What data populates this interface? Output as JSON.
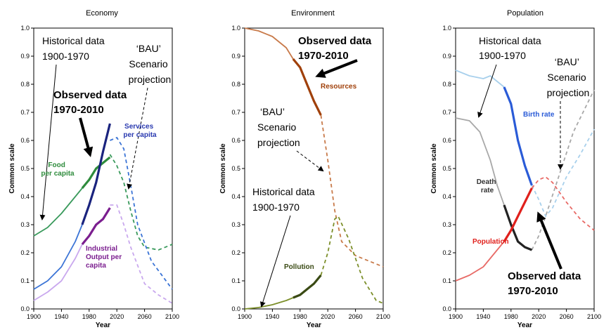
{
  "chart_data": [
    {
      "type": "line",
      "title": "Economy",
      "xlabel": "Year",
      "ylabel": "Common scale",
      "xlim": [
        1900,
        2100
      ],
      "ylim": [
        0,
        1.0
      ],
      "xticks": [
        1900,
        1940,
        1980,
        2020,
        2060,
        2100
      ],
      "yticks": [
        0,
        0.1,
        0.2,
        0.3,
        0.4,
        0.5,
        0.6,
        0.7,
        0.8,
        0.9,
        1.0
      ],
      "series": [
        {
          "name": "Food per capita",
          "color": "#2e8b3c",
          "historical_color": "#3a9a5c",
          "historical": [
            [
              1900,
              0.26
            ],
            [
              1920,
              0.29
            ],
            [
              1940,
              0.34
            ],
            [
              1960,
              0.4
            ],
            [
              1970,
              0.43
            ]
          ],
          "observed": [
            [
              1970,
              0.43
            ],
            [
              1980,
              0.46
            ],
            [
              1990,
              0.5
            ],
            [
              2000,
              0.52
            ],
            [
              2010,
              0.54
            ]
          ],
          "projection": [
            [
              2010,
              0.55
            ],
            [
              2020,
              0.51
            ],
            [
              2030,
              0.45
            ],
            [
              2040,
              0.35
            ],
            [
              2050,
              0.26
            ],
            [
              2060,
              0.22
            ],
            [
              2080,
              0.21
            ],
            [
              2100,
              0.23
            ]
          ]
        },
        {
          "name": "Services per capita",
          "color": "#1a237e",
          "historical_color": "#3b74d6",
          "historical": [
            [
              1900,
              0.07
            ],
            [
              1920,
              0.1
            ],
            [
              1940,
              0.15
            ],
            [
              1960,
              0.24
            ],
            [
              1970,
              0.3
            ]
          ],
          "observed": [
            [
              1970,
              0.3
            ],
            [
              1980,
              0.37
            ],
            [
              1990,
              0.45
            ],
            [
              2000,
              0.56
            ],
            [
              2010,
              0.66
            ]
          ],
          "projection": [
            [
              2010,
              0.6
            ],
            [
              2020,
              0.61
            ],
            [
              2030,
              0.57
            ],
            [
              2040,
              0.44
            ],
            [
              2050,
              0.3
            ],
            [
              2070,
              0.17
            ],
            [
              2100,
              0.07
            ]
          ]
        },
        {
          "name": "Industrial Output per capita",
          "color": "#7b1e8f",
          "historical_color": "#c9a8ee",
          "historical": [
            [
              1900,
              0.03
            ],
            [
              1920,
              0.06
            ],
            [
              1940,
              0.1
            ],
            [
              1960,
              0.18
            ],
            [
              1970,
              0.23
            ]
          ],
          "observed": [
            [
              1970,
              0.23
            ],
            [
              1980,
              0.26
            ],
            [
              1990,
              0.3
            ],
            [
              2000,
              0.32
            ],
            [
              2010,
              0.36
            ]
          ],
          "projection": [
            [
              2010,
              0.37
            ],
            [
              2020,
              0.37
            ],
            [
              2030,
              0.3
            ],
            [
              2040,
              0.22
            ],
            [
              2060,
              0.09
            ],
            [
              2080,
              0.05
            ],
            [
              2100,
              0.02
            ]
          ]
        }
      ],
      "labels": [
        {
          "id": "historical",
          "lines": [
            "Historical data",
            "1900-1970"
          ]
        },
        {
          "id": "observed",
          "lines": [
            "Observed data",
            "1970-2010"
          ]
        },
        {
          "id": "bau",
          "lines": [
            "‘BAU’",
            "Scenario",
            "projection"
          ]
        },
        {
          "id": "food",
          "lines": [
            "Food",
            "per capita"
          ]
        },
        {
          "id": "services",
          "lines": [
            "Services",
            "per capita"
          ]
        },
        {
          "id": "industrial",
          "lines": [
            "Industrial",
            "Output per",
            "capita"
          ]
        }
      ]
    },
    {
      "type": "line",
      "title": "Environment",
      "xlabel": "Year",
      "ylabel": "Common scale",
      "xlim": [
        1900,
        2100
      ],
      "ylim": [
        0,
        1.0
      ],
      "xticks": [
        1900,
        1940,
        1980,
        2020,
        2060,
        2100
      ],
      "yticks": [
        0,
        0.1,
        0.2,
        0.3,
        0.4,
        0.5,
        0.6,
        0.7,
        0.8,
        0.9,
        1.0
      ],
      "series": [
        {
          "name": "Resources",
          "color": "#a0400a",
          "historical_color": "#c87a4a",
          "historical": [
            [
              1900,
              1.0
            ],
            [
              1920,
              0.99
            ],
            [
              1940,
              0.97
            ],
            [
              1960,
              0.93
            ],
            [
              1970,
              0.89
            ]
          ],
          "observed": [
            [
              1970,
              0.89
            ],
            [
              1980,
              0.86
            ],
            [
              1990,
              0.8
            ],
            [
              2000,
              0.74
            ],
            [
              2010,
              0.69
            ]
          ],
          "projection": [
            [
              2010,
              0.69
            ],
            [
              2020,
              0.53
            ],
            [
              2030,
              0.35
            ],
            [
              2040,
              0.24
            ],
            [
              2060,
              0.19
            ],
            [
              2080,
              0.17
            ],
            [
              2100,
              0.15
            ]
          ]
        },
        {
          "name": "Pollution",
          "color": "#3a4a14",
          "historical_color": "#7c8f2a",
          "historical": [
            [
              1900,
              0.0
            ],
            [
              1920,
              0.005
            ],
            [
              1940,
              0.015
            ],
            [
              1960,
              0.03
            ],
            [
              1970,
              0.04
            ]
          ],
          "observed": [
            [
              1970,
              0.04
            ],
            [
              1980,
              0.05
            ],
            [
              1990,
              0.07
            ],
            [
              2000,
              0.09
            ],
            [
              2010,
              0.12
            ]
          ],
          "projection": [
            [
              2010,
              0.12
            ],
            [
              2020,
              0.2
            ],
            [
              2030,
              0.32
            ],
            [
              2035,
              0.33
            ],
            [
              2050,
              0.25
            ],
            [
              2070,
              0.11
            ],
            [
              2090,
              0.03
            ],
            [
              2100,
              0.02
            ]
          ]
        }
      ],
      "labels": [
        {
          "id": "observed",
          "lines": [
            "Observed data",
            "1970-2010"
          ]
        },
        {
          "id": "resources",
          "lines": [
            "Resources"
          ]
        },
        {
          "id": "bau",
          "lines": [
            "‘BAU’",
            "Scenario",
            "projection"
          ]
        },
        {
          "id": "historical",
          "lines": [
            "Historical data",
            "1900-1970"
          ]
        },
        {
          "id": "pollution",
          "lines": [
            "Pollution"
          ]
        }
      ]
    },
    {
      "type": "line",
      "title": "Population",
      "xlabel": "Year",
      "ylabel": "Common scale",
      "xlim": [
        1900,
        2100
      ],
      "ylim": [
        0,
        1.0
      ],
      "xticks": [
        1900,
        1940,
        1980,
        2020,
        2060,
        2100
      ],
      "yticks": [
        0,
        0.1,
        0.2,
        0.3,
        0.4,
        0.5,
        0.6,
        0.7,
        0.8,
        0.9,
        1.0
      ],
      "series": [
        {
          "name": "Birth rate",
          "color": "#2a5bd7",
          "historical_color": "#a8d0ec",
          "historical": [
            [
              1900,
              0.85
            ],
            [
              1920,
              0.83
            ],
            [
              1940,
              0.82
            ],
            [
              1950,
              0.83
            ],
            [
              1960,
              0.81
            ],
            [
              1970,
              0.79
            ]
          ],
          "observed": [
            [
              1970,
              0.79
            ],
            [
              1980,
              0.73
            ],
            [
              1990,
              0.6
            ],
            [
              2000,
              0.51
            ],
            [
              2010,
              0.44
            ]
          ],
          "projection": [
            [
              2010,
              0.44
            ],
            [
              2020,
              0.39
            ],
            [
              2030,
              0.33
            ],
            [
              2040,
              0.36
            ],
            [
              2060,
              0.47
            ],
            [
              2080,
              0.55
            ],
            [
              2100,
              0.64
            ]
          ]
        },
        {
          "name": "Death rate",
          "color": "#222222",
          "historical_color": "#a8a8a8",
          "historical": [
            [
              1900,
              0.68
            ],
            [
              1920,
              0.67
            ],
            [
              1935,
              0.63
            ],
            [
              1950,
              0.53
            ],
            [
              1960,
              0.44
            ],
            [
              1970,
              0.37
            ]
          ],
          "observed": [
            [
              1970,
              0.37
            ],
            [
              1980,
              0.3
            ],
            [
              1990,
              0.24
            ],
            [
              2000,
              0.22
            ],
            [
              2010,
              0.21
            ]
          ],
          "projection": [
            [
              2010,
              0.21
            ],
            [
              2020,
              0.26
            ],
            [
              2030,
              0.33
            ],
            [
              2050,
              0.48
            ],
            [
              2070,
              0.63
            ],
            [
              2090,
              0.73
            ],
            [
              2100,
              0.78
            ]
          ]
        },
        {
          "name": "Population",
          "color": "#e0201c",
          "historical_color": "#e86a66",
          "historical": [
            [
              1900,
              0.1
            ],
            [
              1920,
              0.12
            ],
            [
              1940,
              0.15
            ],
            [
              1960,
              0.21
            ],
            [
              1970,
              0.24
            ]
          ],
          "observed": [
            [
              1970,
              0.24
            ],
            [
              1980,
              0.28
            ],
            [
              1990,
              0.33
            ],
            [
              2000,
              0.38
            ],
            [
              2010,
              0.43
            ]
          ],
          "projection": [
            [
              2010,
              0.43
            ],
            [
              2020,
              0.46
            ],
            [
              2030,
              0.47
            ],
            [
              2040,
              0.45
            ],
            [
              2060,
              0.38
            ],
            [
              2080,
              0.32
            ],
            [
              2100,
              0.28
            ]
          ]
        }
      ],
      "labels": [
        {
          "id": "historical",
          "lines": [
            "Historical data",
            "1900-1970"
          ]
        },
        {
          "id": "bau",
          "lines": [
            "‘BAU’",
            "Scenario",
            "projection"
          ]
        },
        {
          "id": "birth",
          "lines": [
            "Birth rate"
          ]
        },
        {
          "id": "death",
          "lines": [
            "Death",
            "rate"
          ]
        },
        {
          "id": "population",
          "lines": [
            "Population"
          ]
        },
        {
          "id": "observed",
          "lines": [
            "Observed data",
            "1970-2010"
          ]
        }
      ]
    }
  ]
}
